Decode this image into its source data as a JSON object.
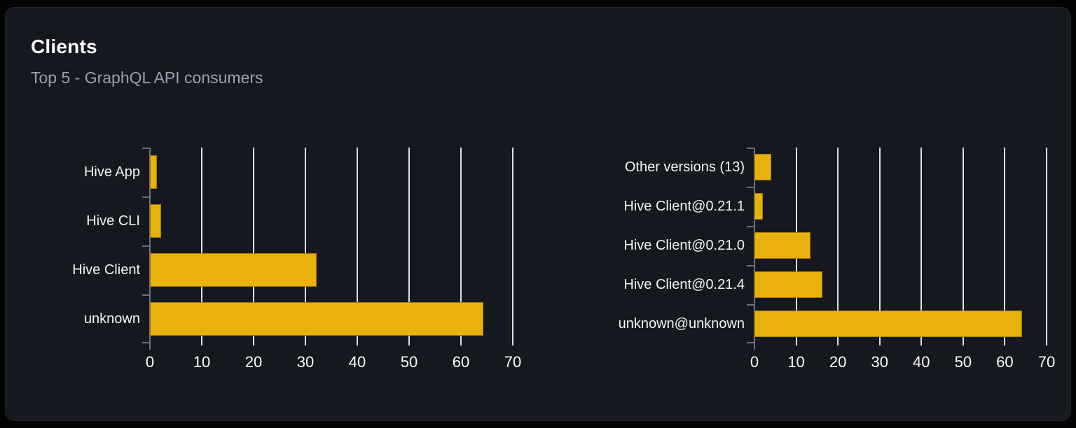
{
  "card": {
    "title": "Clients",
    "subtitle": "Top 5 - GraphQL API consumers"
  },
  "colors": {
    "bar": "#e9b10c",
    "card_background": "#15181e",
    "page_background": "#030303",
    "gridline": "#dcdfe5",
    "axis": "#6c7077",
    "title_text": "#ffffff",
    "subtitle_text": "#9aa1ac",
    "label_text": "#f4f5f7"
  },
  "chart_data": [
    {
      "type": "bar",
      "orientation": "horizontal",
      "name": "clients-by-name",
      "title": "",
      "xlabel": "",
      "ylabel": "",
      "categories": [
        "Hive App",
        "Hive CLI",
        "Hive Client",
        "unknown"
      ],
      "values": [
        1.4,
        2.1,
        32.2,
        64.3
      ],
      "xlim": [
        0,
        70
      ],
      "xticks": [
        0,
        10,
        20,
        30,
        40,
        50,
        60,
        70
      ],
      "grid": true,
      "legend": false
    },
    {
      "type": "bar",
      "orientation": "horizontal",
      "name": "clients-by-version",
      "title": "",
      "xlabel": "",
      "ylabel": "",
      "categories": [
        "Other versions (13)",
        "Hive Client@0.21.1",
        "Hive Client@0.21.0",
        "Hive Client@0.21.4",
        "unknown@unknown"
      ],
      "values": [
        4,
        2,
        13.5,
        16.2,
        64.2
      ],
      "xlim": [
        0,
        70
      ],
      "xticks": [
        0,
        10,
        20,
        30,
        40,
        50,
        60,
        70
      ],
      "grid": true,
      "legend": false
    }
  ]
}
